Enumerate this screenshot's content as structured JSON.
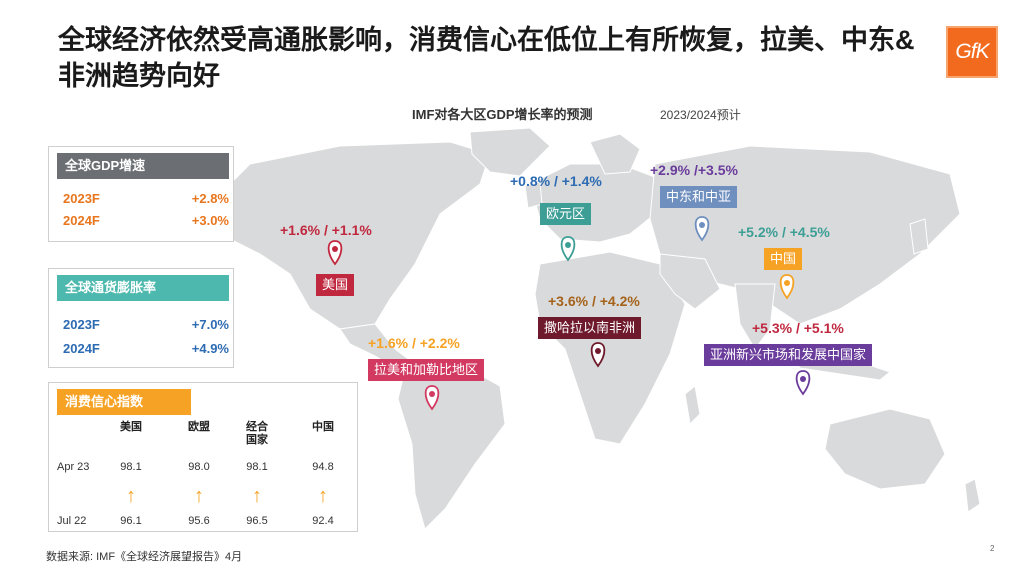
{
  "title": "全球经济依然受高通胀影响，消费信心在低位上有所恢复，拉美、中东&非洲趋势向好",
  "logo": "GfK",
  "map": {
    "title": "IMF对各大区GDP增长率的预测",
    "subtitle": "2023/2024预计"
  },
  "gdp": {
    "header": "全球GDP增速",
    "rows": [
      {
        "label": "2023F",
        "value": "+2.8%"
      },
      {
        "label": "2024F",
        "value": "+3.0%"
      }
    ]
  },
  "inflation": {
    "header": "全球通货膨胀率",
    "rows": [
      {
        "label": "2023F",
        "value": "+7.0%"
      },
      {
        "label": "2024F",
        "value": "+4.9%"
      }
    ]
  },
  "consumer_confidence": {
    "header": "消费信心指数",
    "columns": [
      "美国",
      "欧盟",
      "经合国家",
      "中国"
    ],
    "apr_label": "Apr 23",
    "apr_values": [
      "98.1",
      "98.0",
      "98.1",
      "94.8"
    ],
    "jul_label": "Jul 22",
    "jul_values": [
      "96.1",
      "95.6",
      "96.5",
      "92.4"
    ],
    "trend_icon": "up-arrow-icon"
  },
  "regions": [
    {
      "id": "us",
      "value": "+1.6% / +1.1%",
      "label": "美国",
      "color": "#c0283f"
    },
    {
      "id": "eu",
      "value": "+0.8% / +1.4%",
      "label": "欧元区",
      "color": "#3d9e95"
    },
    {
      "id": "me",
      "value": "+2.9% /+3.5%",
      "label": "中东和中亚",
      "color": "#6f8fbf"
    },
    {
      "id": "cn",
      "value": "+5.2% / +4.5%",
      "label": "中国",
      "color": "#f6a224"
    },
    {
      "id": "ssa",
      "value": "+3.6% / +4.2%",
      "label": "撒哈拉以南非洲",
      "color": "#6e1a2c"
    },
    {
      "id": "lat",
      "value": "+1.6% / +2.2%",
      "label": "拉美和加勒比地区",
      "color": "#d33a62"
    },
    {
      "id": "asia",
      "value": "+5.3% / +5.1%",
      "label": "亚洲新兴市场和发展中国家",
      "color": "#6a3c9c"
    }
  ],
  "colors": {
    "map_land": "#d9dadb",
    "accent_orange": "#f26a1e"
  },
  "footer": "数据来源: IMF《全球经济展望报告》4月",
  "page_number": "2"
}
